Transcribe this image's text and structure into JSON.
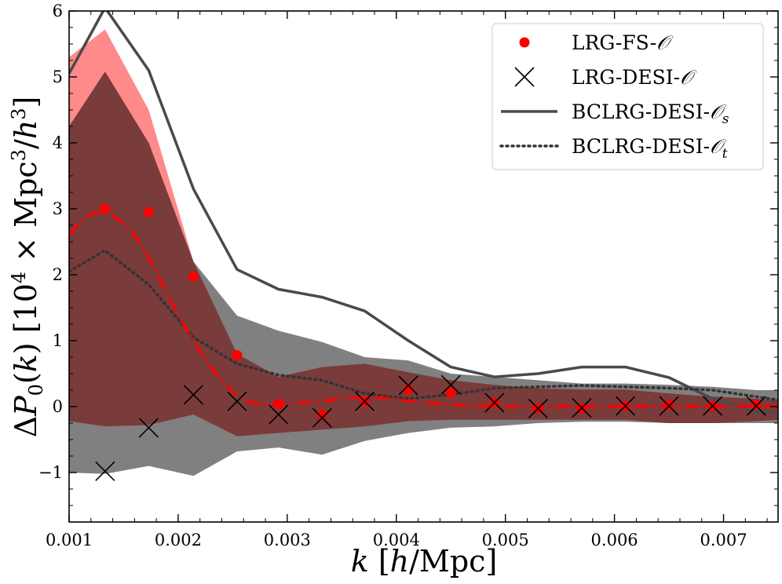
{
  "chart_data": {
    "type": "line",
    "xlabel": "k [h/Mpc]",
    "ylabel": "ΔP0(k) [10^4 × Mpc^3/h^3]",
    "xlim": [
      0.001,
      0.0075
    ],
    "ylim": [
      -1.75,
      6
    ],
    "x_ticks": [
      0.001,
      0.002,
      0.003,
      0.004,
      0.005,
      0.006,
      0.007
    ],
    "x_tick_labels": [
      "0.001",
      "0.002",
      "0.003",
      "0.004",
      "0.005",
      "0.006",
      "0.007"
    ],
    "y_ticks": [
      -1,
      0,
      1,
      2,
      3,
      4,
      5,
      6
    ],
    "y_tick_labels": [
      "−1",
      "0",
      "1",
      "2",
      "3",
      "4",
      "5",
      "6"
    ],
    "bands": [
      {
        "name": "LRG-FS-O band",
        "color": "#ff8a8a",
        "x": [
          0.001,
          0.00133,
          0.00173,
          0.00214,
          0.00254,
          0.00292,
          0.00332,
          0.00371,
          0.00411,
          0.0045,
          0.0049,
          0.0053,
          0.0057,
          0.0061,
          0.0065,
          0.0069,
          0.0073,
          0.0075
        ],
        "upper": [
          5.3,
          5.72,
          4.5,
          2.2,
          0.8,
          0.45,
          0.6,
          0.65,
          0.52,
          0.4,
          0.33,
          0.28,
          0.26,
          0.26,
          0.2,
          0.15,
          0.12,
          0.1
        ],
        "lower": [
          -0.22,
          -0.3,
          -0.28,
          -0.12,
          -0.45,
          -0.4,
          -0.35,
          -0.3,
          -0.22,
          -0.2,
          -0.2,
          -0.2,
          -0.2,
          -0.2,
          -0.25,
          -0.25,
          -0.22,
          -0.2
        ]
      },
      {
        "name": "LRG-DESI-O band",
        "color": "#808080",
        "x": [
          0.001,
          0.00133,
          0.00173,
          0.00214,
          0.00254,
          0.00292,
          0.00332,
          0.00371,
          0.00411,
          0.0045,
          0.0049,
          0.0053,
          0.0057,
          0.0061,
          0.0065,
          0.0069,
          0.0073,
          0.0075
        ],
        "upper": [
          4.25,
          5.08,
          4.0,
          2.2,
          1.38,
          1.15,
          0.98,
          0.75,
          0.7,
          0.5,
          0.45,
          0.4,
          0.35,
          0.35,
          0.33,
          0.3,
          0.25,
          0.25
        ],
        "lower": [
          -1.0,
          -1.02,
          -0.9,
          -1.05,
          -0.68,
          -0.62,
          -0.73,
          -0.52,
          -0.4,
          -0.32,
          -0.3,
          -0.25,
          -0.23,
          -0.23,
          -0.25,
          -0.25,
          -0.25,
          -0.25
        ]
      }
    ],
    "series": [
      {
        "name": "LRG-FS-O",
        "kind": "points-dot",
        "color": "#ff0000",
        "x": [
          0.00133,
          0.00173,
          0.00214,
          0.00254,
          0.00292,
          0.00332,
          0.00371,
          0.00411,
          0.0045,
          0.0049,
          0.0053,
          0.0057,
          0.0061,
          0.0065,
          0.0069,
          0.0073
        ],
        "y": [
          3.0,
          2.95,
          1.97,
          0.78,
          0.04,
          -0.12,
          0.08,
          0.26,
          0.21,
          0.06,
          -0.03,
          -0.03,
          0.01,
          0.03,
          0.01,
          0.03
        ]
      },
      {
        "name": "LRG-DESI-O",
        "kind": "points-x",
        "color": "#000000",
        "x": [
          0.00133,
          0.00173,
          0.00214,
          0.00254,
          0.00292,
          0.00332,
          0.00371,
          0.00411,
          0.0045,
          0.0049,
          0.0053,
          0.0057,
          0.0061,
          0.0065,
          0.0069,
          0.0073
        ],
        "y": [
          -0.98,
          -0.32,
          0.18,
          0.08,
          -0.12,
          -0.17,
          0.08,
          0.32,
          0.33,
          0.06,
          -0.03,
          -0.02,
          0.01,
          0.01,
          0.01,
          0.01
        ]
      },
      {
        "name": "BCLRG-DESI-Os",
        "kind": "line-solid",
        "color": "#4a4a4a",
        "x": [
          0.001,
          0.00133,
          0.00173,
          0.00214,
          0.00254,
          0.00292,
          0.00332,
          0.00371,
          0.00411,
          0.0045,
          0.0049,
          0.0053,
          0.0057,
          0.0061,
          0.0065,
          0.0069,
          0.0073,
          0.0075
        ],
        "y": [
          5.05,
          6.05,
          5.1,
          3.3,
          2.08,
          1.78,
          1.66,
          1.45,
          1.0,
          0.6,
          0.45,
          0.5,
          0.6,
          0.6,
          0.44,
          0.12,
          -0.08,
          -0.08
        ]
      },
      {
        "name": "BCLRG-DESI-Ot",
        "kind": "line-dotted",
        "color": "#333333",
        "x": [
          0.001,
          0.00133,
          0.00173,
          0.00214,
          0.00254,
          0.00292,
          0.00332,
          0.00371,
          0.00411,
          0.0045,
          0.0049,
          0.0053,
          0.0057,
          0.0061,
          0.0065,
          0.0069,
          0.0073,
          0.0075
        ],
        "y": [
          2.05,
          2.37,
          1.85,
          1.05,
          0.65,
          0.48,
          0.4,
          0.2,
          0.12,
          0.18,
          0.28,
          0.3,
          0.32,
          0.3,
          0.28,
          0.25,
          0.15,
          0.1
        ]
      },
      {
        "name": "LRG-FS-O model",
        "kind": "line-dashdot",
        "color": "#ff0000",
        "x": [
          0.001,
          0.0011,
          0.0012,
          0.0013,
          0.0014,
          0.0015,
          0.0016,
          0.0017,
          0.0018,
          0.0019,
          0.002,
          0.0021,
          0.0022,
          0.0023,
          0.0024,
          0.0025,
          0.0026,
          0.0027,
          0.0028,
          0.0029,
          0.003,
          0.0032,
          0.0034,
          0.0036,
          0.0038,
          0.004,
          0.0042,
          0.0044,
          0.0046,
          0.0048,
          0.005,
          0.0055,
          0.006,
          0.0065,
          0.007,
          0.0075
        ],
        "y": [
          2.6,
          2.8,
          2.92,
          2.95,
          2.9,
          2.78,
          2.6,
          2.35,
          2.05,
          1.7,
          1.4,
          1.1,
          0.85,
          0.6,
          0.4,
          0.22,
          0.1,
          0.05,
          0.03,
          0.04,
          0.05,
          0.06,
          0.1,
          0.14,
          0.14,
          0.11,
          0.07,
          0.04,
          0.02,
          0.01,
          0.0,
          0.0,
          0.0,
          0.0,
          0.0,
          0.0
        ]
      }
    ],
    "legend": {
      "position": "top-right",
      "entries": [
        {
          "label": "LRG-FS-",
          "sub": "",
          "kind": "points-dot"
        },
        {
          "label": "LRG-DESI-",
          "sub": "",
          "kind": "points-x"
        },
        {
          "label": "BCLRG-DESI-",
          "sub": "s",
          "kind": "line-solid"
        },
        {
          "label": "BCLRG-DESI-",
          "sub": "t",
          "kind": "line-dotted"
        }
      ],
      "script_symbol": "𝒪"
    }
  }
}
